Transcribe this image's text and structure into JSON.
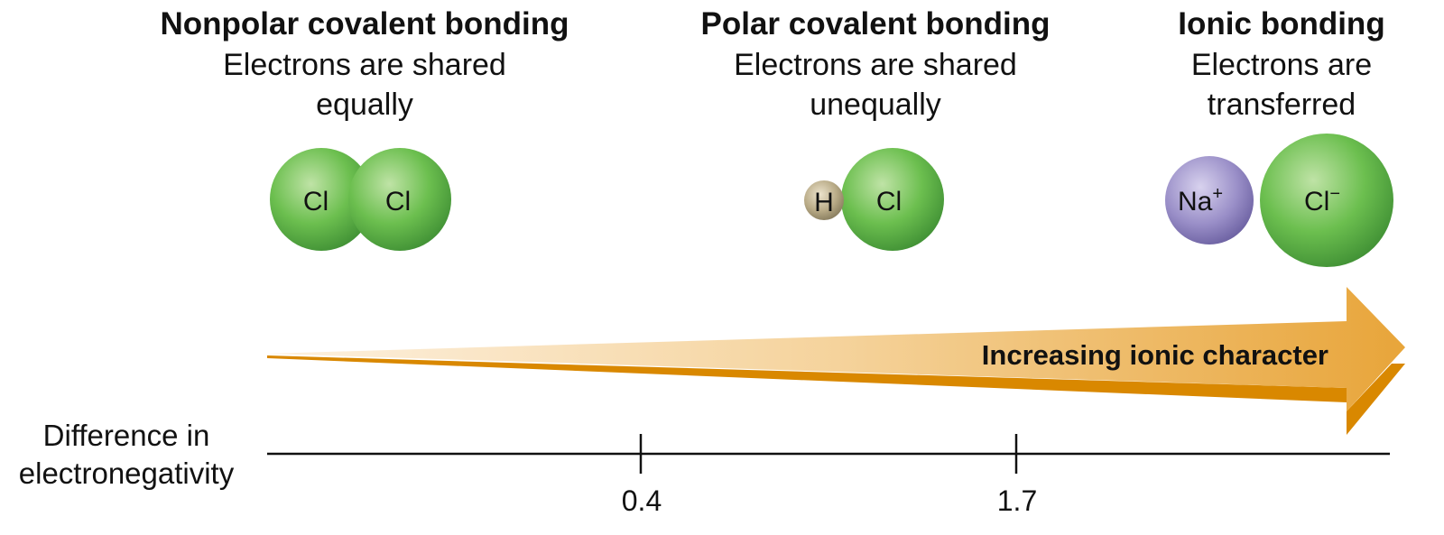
{
  "sections": {
    "nonpolar": {
      "title": "Nonpolar covalent bonding",
      "desc_line1": "Electrons are shared",
      "desc_line2": "equally",
      "atoms": [
        "Cl",
        "Cl"
      ]
    },
    "polar": {
      "title": "Polar covalent bonding",
      "desc_line1": "Electrons are shared",
      "desc_line2": "unequally",
      "atoms": [
        "H",
        "Cl"
      ]
    },
    "ionic": {
      "title": "Ionic bonding",
      "desc_line1": "Electrons are",
      "desc_line2": "transferred",
      "atoms": [
        {
          "symbol": "Na",
          "charge": "+"
        },
        {
          "symbol": "Cl",
          "charge": "−"
        }
      ]
    }
  },
  "arrow": {
    "label": "Increasing ionic character"
  },
  "axis": {
    "label_line1": "Difference in",
    "label_line2": "electronegativity",
    "ticks": [
      "0.4",
      "1.7"
    ]
  },
  "colors": {
    "chlorine": "#6cbf4f",
    "hydrogen": "#b8aa86",
    "sodium": "#9a8fc8",
    "arrow_light": "#fdf1e0",
    "arrow_dark": "#e8a53a",
    "arrow_edge": "#d98800"
  }
}
